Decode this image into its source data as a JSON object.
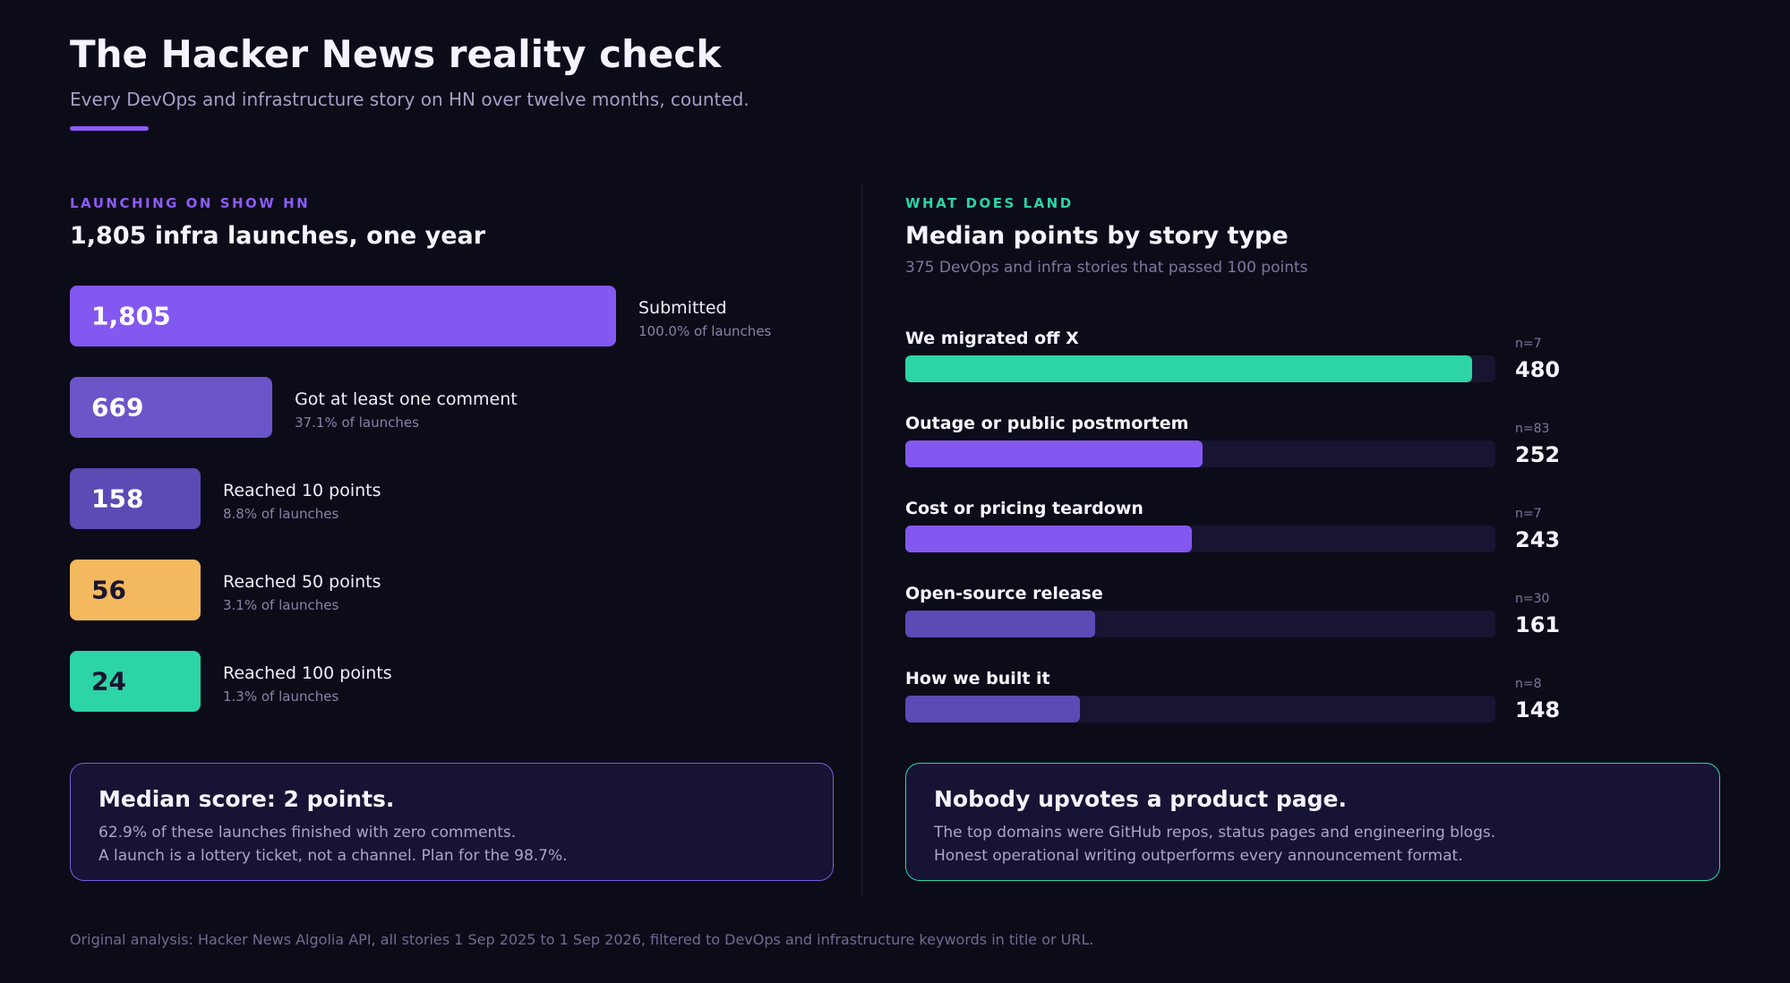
{
  "header": {
    "title": "The Hacker News reality check",
    "subtitle": "Every DevOps and infrastructure story on HN over twelve months, counted.",
    "accent_color": "#8b5cf6"
  },
  "left_panel": {
    "eyebrow": "LAUNCHING ON SHOW HN",
    "title": "1,805 infra launches, one year"
  },
  "right_panel": {
    "eyebrow": "WHAT DOES LAND",
    "title": "Median points by story type",
    "subtitle": "375 DevOps and infra stories that passed 100 points"
  },
  "chart_data": [
    {
      "type": "bar",
      "orientation": "horizontal",
      "categories": [
        "Submitted",
        "Got at least one comment",
        "Reached 10 points",
        "Reached 50 points",
        "Reached 100 points"
      ],
      "values": [
        1805,
        669,
        158,
        56,
        24
      ],
      "value_labels": [
        "1,805",
        "669",
        "158",
        "56",
        "24"
      ],
      "percent_labels": [
        "100.0% of launches",
        "37.1% of launches",
        "8.8% of launches",
        "3.1% of launches",
        "1.3% of launches"
      ],
      "colors": [
        "#8358f0",
        "#6b55c9",
        "#5a4bb5",
        "#f4b95e",
        "#2dd4a6"
      ],
      "value_text_colors": [
        "#ffffff",
        "#ffffff",
        "#ffffff",
        "#1a1530",
        "#1a1530"
      ]
    },
    {
      "type": "bar",
      "orientation": "horizontal",
      "categories": [
        "We migrated off X",
        "Outage or public postmortem",
        "Cost or pricing teardown",
        "Open-source release",
        "How we built it"
      ],
      "values": [
        480,
        252,
        243,
        161,
        148
      ],
      "n_labels": [
        "n=7",
        "n=83",
        "n=7",
        "n=30",
        "n=8"
      ],
      "xlim": [
        0,
        500
      ],
      "colors": [
        "#2dd4a6",
        "#8358f0",
        "#8358f0",
        "#5a4bb5",
        "#5a4bb5"
      ],
      "track_color": "#181532"
    }
  ],
  "callouts": {
    "left": {
      "title": "Median score: 2 points.",
      "line1": "62.9% of these launches finished with zero comments.",
      "line2": "A launch is a lottery ticket, not a channel. Plan for the 98.7%.",
      "border_color": "#7c5ce0"
    },
    "right": {
      "title": "Nobody upvotes a product page.",
      "line1": "The top domains were GitHub repos, status pages and engineering blogs.",
      "line2": "Honest operational writing outperforms every announcement format.",
      "border_color": "#2dd4a6"
    }
  },
  "footer": {
    "source": "Original analysis: Hacker News Algolia API, all stories 1 Sep 2025 to 1 Sep 2026, filtered to DevOps and infrastructure keywords in title or URL."
  }
}
